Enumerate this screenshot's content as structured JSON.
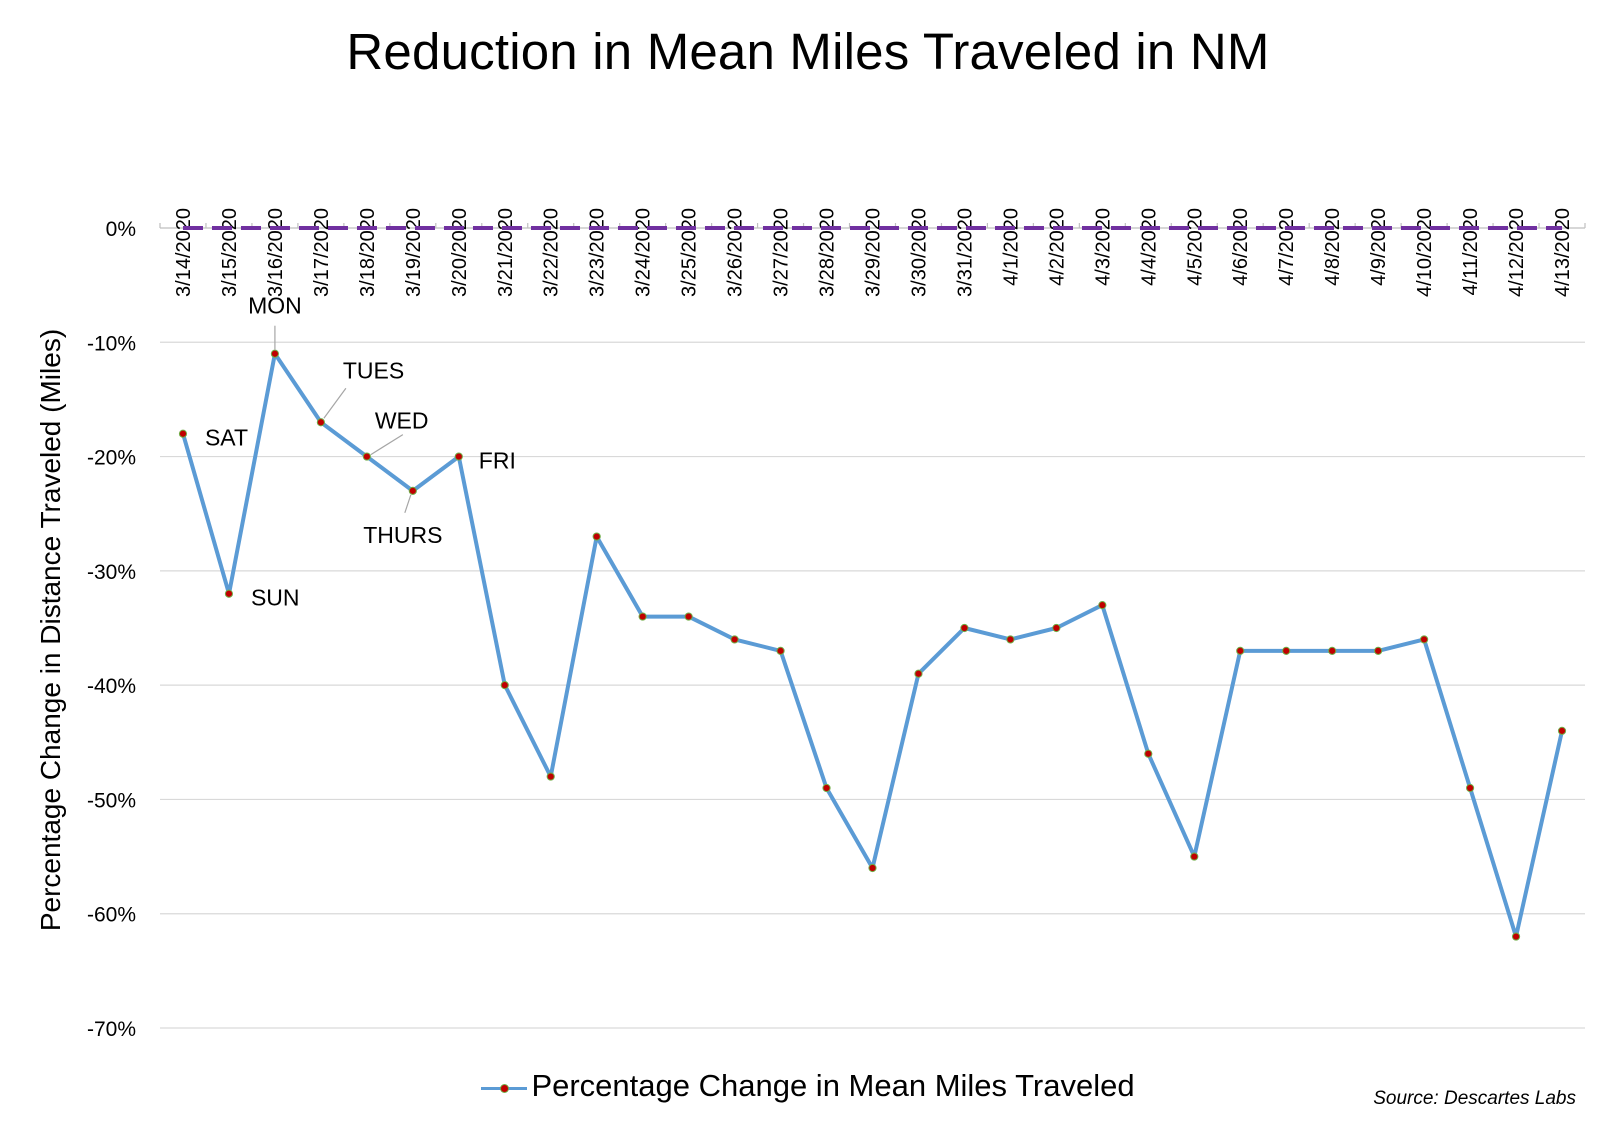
{
  "title": "Reduction in Mean Miles Traveled in NM",
  "source": "Source: Descartes Labs",
  "chart_data": {
    "type": "line",
    "title": "Reduction in Mean Miles Traveled in NM",
    "xlabel": "",
    "ylabel": "Percentage Change in Distance Traveled (Miles)",
    "ylim": [
      -70,
      0
    ],
    "y_ticks": [
      "0%",
      "-10%",
      "-20%",
      "-30%",
      "-40%",
      "-50%",
      "-60%",
      "-70%"
    ],
    "x_axis_position": "top",
    "grid": true,
    "legend_position": "bottom",
    "categories": [
      "3/14/2020",
      "3/15/2020",
      "3/16/2020",
      "3/17/2020",
      "3/18/2020",
      "3/19/2020",
      "3/20/2020",
      "3/21/2020",
      "3/22/2020",
      "3/23/2020",
      "3/24/2020",
      "3/25/2020",
      "3/26/2020",
      "3/27/2020",
      "3/28/2020",
      "3/29/2020",
      "3/30/2020",
      "3/31/2020",
      "4/1/2020",
      "4/2/2020",
      "4/3/2020",
      "4/4/2020",
      "4/5/2020",
      "4/6/2020",
      "4/7/2020",
      "4/8/2020",
      "4/9/2020",
      "4/10/2020",
      "4/11/2020",
      "4/12/2020",
      "4/13/2020"
    ],
    "series": [
      {
        "name": "Percentage Change in Mean Miles Traveled",
        "color": "#5b9bd5",
        "marker_color": "#c00000",
        "values": [
          -18,
          -32,
          -11,
          -17,
          -20,
          -23,
          -20,
          -40,
          -48,
          -27,
          -34,
          -34,
          -36,
          -37,
          -49,
          -56,
          -39,
          -35,
          -36,
          -35,
          -33,
          -46,
          -55,
          -37,
          -37,
          -37,
          -37,
          -36,
          -49,
          -62,
          -44
        ]
      }
    ],
    "baseline": {
      "value": 0,
      "style": "dashed",
      "color": "#7030a0"
    },
    "annotations": [
      {
        "index": 0,
        "text": "SAT"
      },
      {
        "index": 1,
        "text": "SUN"
      },
      {
        "index": 2,
        "text": "MON"
      },
      {
        "index": 3,
        "text": "TUES"
      },
      {
        "index": 4,
        "text": "WED"
      },
      {
        "index": 5,
        "text": "THURS"
      },
      {
        "index": 6,
        "text": "FRI"
      }
    ]
  }
}
